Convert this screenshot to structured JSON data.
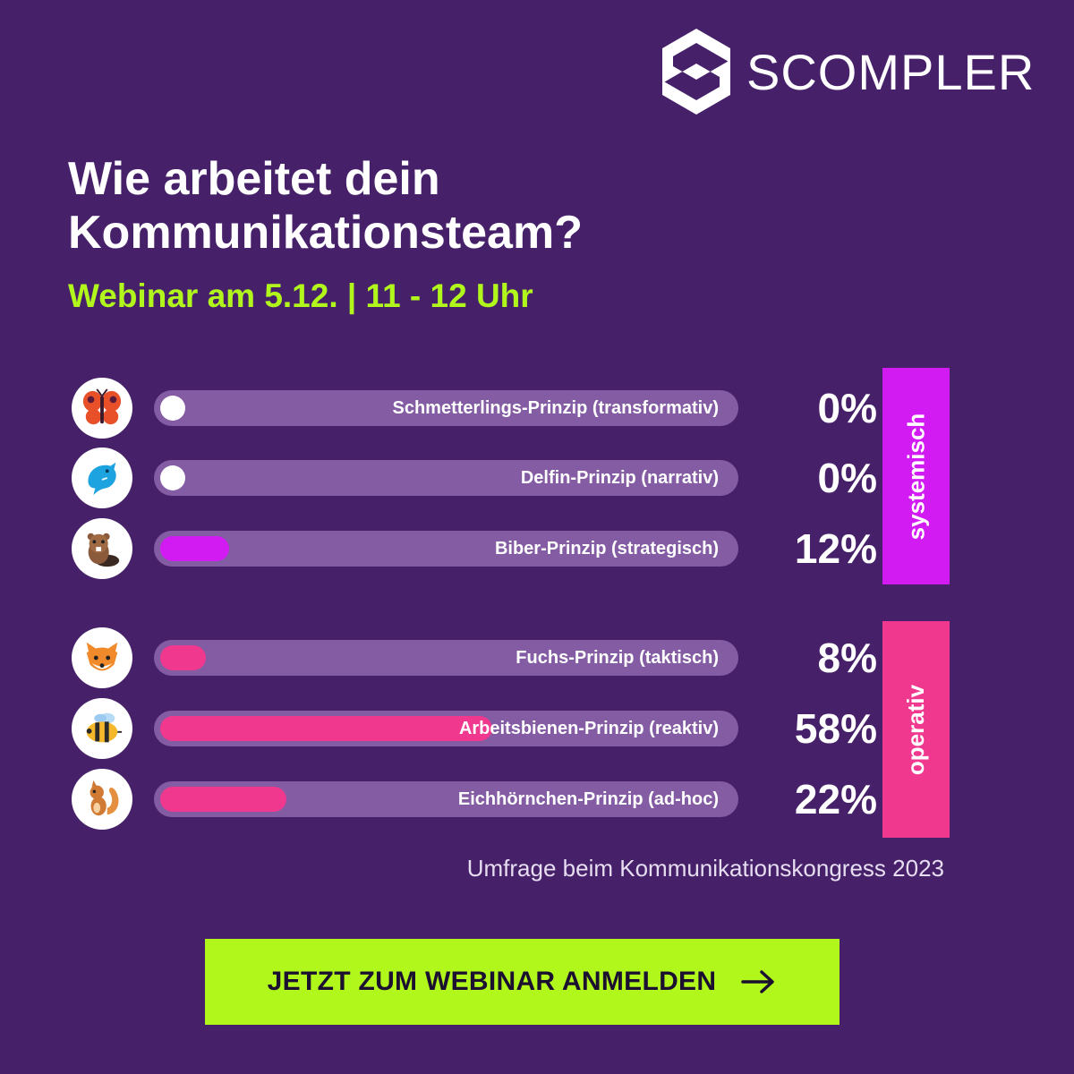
{
  "brand": {
    "name": "SCOMPLER"
  },
  "header": {
    "title_line1": "Wie arbeitet dein",
    "title_line2": "Kommunikationsteam?",
    "subtitle": "Webinar am 5.12. | 11 - 12 Uhr"
  },
  "colors": {
    "background": "#46216a",
    "accent_green": "#b2f71c",
    "systemic": "#d21bf3",
    "operative": "#f0388f",
    "track": "#845ca3"
  },
  "chart_data": {
    "type": "bar",
    "orientation": "horizontal",
    "unit": "%",
    "ylim": [
      0,
      100
    ],
    "categories": [
      "Schmetterlings-Prinzip (transformativ)",
      "Delfin-Prinzip (narrativ)",
      "Biber-Prinzip (strategisch)",
      "Fuchs-Prinzip (taktisch)",
      "Arbeitsbienen-Prinzip (reaktiv)",
      "Eichhörnchen-Prinzip (ad-hoc)"
    ],
    "values": [
      0,
      0,
      12,
      8,
      58,
      22
    ],
    "value_labels": [
      "0%",
      "0%",
      "12%",
      "8%",
      "58%",
      "22%"
    ],
    "icons": [
      "butterfly-icon",
      "dolphin-icon",
      "beaver-icon",
      "fox-icon",
      "bee-icon",
      "squirrel-icon"
    ],
    "groups": [
      {
        "name": "systemisch",
        "members": [
          0,
          1,
          2
        ],
        "color": "#d21bf3"
      },
      {
        "name": "operativ",
        "members": [
          3,
          4,
          5
        ],
        "color": "#f0388f"
      }
    ]
  },
  "footer": {
    "source": "Umfrage beim Kommunikationskongress 2023",
    "cta_label": "JETZT ZUM WEBINAR ANMELDEN",
    "cta_icon": "arrow-right-icon"
  }
}
